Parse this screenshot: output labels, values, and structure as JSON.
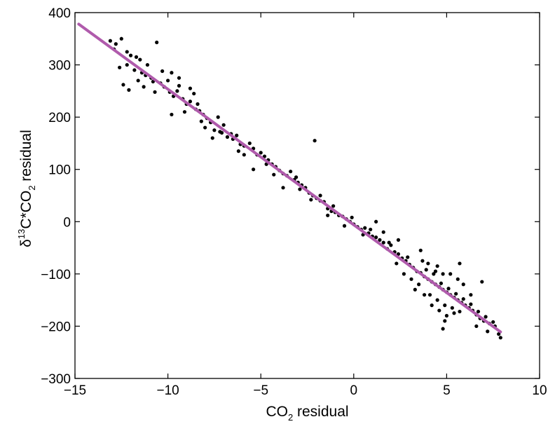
{
  "chart_data": {
    "type": "scatter",
    "title": "",
    "xlabel": {
      "main": "CO",
      "sub": "2",
      "rest": " residual"
    },
    "ylabel": {
      "pre": "δ",
      "sup": "13",
      "mid": "C*CO",
      "sub": "2",
      "rest": " residual"
    },
    "xlim": [
      -15,
      10
    ],
    "ylim": [
      -300,
      400
    ],
    "x_ticks": [
      -15,
      -10,
      -5,
      0,
      5,
      10
    ],
    "y_ticks": [
      -300,
      -200,
      -100,
      0,
      100,
      200,
      300,
      400
    ],
    "x_tick_labels": [
      "−15",
      "−10",
      "−5",
      "0",
      "5",
      "10"
    ],
    "y_tick_labels": [
      "−300",
      "−200",
      "−100",
      "0",
      "100",
      "200",
      "300",
      "400"
    ],
    "grid": false,
    "legend": "none",
    "point_color": "#000000",
    "fit_color": "#b05bac",
    "fit_line": {
      "x": [
        -14.8,
        7.9
      ],
      "y": [
        378,
        -211
      ]
    },
    "series": [
      {
        "points": [
          [
            -13.1,
            346
          ],
          [
            -12.8,
            340
          ],
          [
            -12.5,
            350
          ],
          [
            -12.9,
            330
          ],
          [
            -12.2,
            325
          ],
          [
            -12.6,
            295
          ],
          [
            -12.4,
            262
          ],
          [
            -12.1,
            252
          ],
          [
            -12.0,
            318
          ],
          [
            -11.7,
            315
          ],
          [
            -11.5,
            310
          ],
          [
            -11.8,
            290
          ],
          [
            -11.4,
            285
          ],
          [
            -11.2,
            280
          ],
          [
            -11.1,
            300
          ],
          [
            -10.9,
            275
          ],
          [
            -11.3,
            258
          ],
          [
            -10.6,
            343
          ],
          [
            -10.8,
            268
          ],
          [
            -10.4,
            265
          ],
          [
            -10.2,
            258
          ],
          [
            -10.0,
            270
          ],
          [
            -9.8,
            285
          ],
          [
            -9.7,
            240
          ],
          [
            -9.5,
            250
          ],
          [
            -9.4,
            260
          ],
          [
            -9.2,
            235
          ],
          [
            -9.0,
            225
          ],
          [
            -9.8,
            205
          ],
          [
            -8.8,
            230
          ],
          [
            -8.6,
            245
          ],
          [
            -8.5,
            215
          ],
          [
            -8.3,
            212
          ],
          [
            -8.1,
            205
          ],
          [
            -7.9,
            198
          ],
          [
            -8.0,
            180
          ],
          [
            -7.7,
            190
          ],
          [
            -7.5,
            175
          ],
          [
            -7.2,
            172
          ],
          [
            -7.0,
            185
          ],
          [
            -6.8,
            162
          ],
          [
            -6.5,
            158
          ],
          [
            -6.3,
            165
          ],
          [
            -6.1,
            148
          ],
          [
            -5.9,
            145
          ],
          [
            -5.6,
            150
          ],
          [
            -5.4,
            140
          ],
          [
            -5.2,
            128
          ],
          [
            -5.0,
            132
          ],
          [
            -4.8,
            125
          ],
          [
            -4.6,
            118
          ],
          [
            -4.4,
            110
          ],
          [
            -4.2,
            105
          ],
          [
            -4.0,
            98
          ],
          [
            -3.8,
            92
          ],
          [
            -3.6,
            88
          ],
          [
            -3.4,
            96
          ],
          [
            -3.2,
            80
          ],
          [
            -3.0,
            75
          ],
          [
            -2.8,
            70
          ],
          [
            -2.6,
            65
          ],
          [
            -2.4,
            55
          ],
          [
            -2.2,
            50
          ],
          [
            -2.1,
            155
          ],
          [
            -2.0,
            45
          ],
          [
            -1.8,
            40
          ],
          [
            -1.6,
            38
          ],
          [
            -1.4,
            25
          ],
          [
            -1.2,
            20
          ],
          [
            -1.0,
            18
          ],
          [
            -0.8,
            12
          ],
          [
            -0.6,
            10
          ],
          [
            -0.4,
            5
          ],
          [
            -0.2,
            0
          ],
          [
            0.0,
            -5
          ],
          [
            0.2,
            -10
          ],
          [
            0.4,
            -15
          ],
          [
            0.6,
            -12
          ],
          [
            0.8,
            -22
          ],
          [
            1.0,
            -28
          ],
          [
            1.2,
            -30
          ],
          [
            1.4,
            -35
          ],
          [
            1.6,
            -40
          ],
          [
            1.8,
            -52
          ],
          [
            2.0,
            -45
          ],
          [
            2.2,
            -58
          ],
          [
            2.4,
            -62
          ],
          [
            2.6,
            -70
          ],
          [
            2.8,
            -75
          ],
          [
            3.0,
            -82
          ],
          [
            3.2,
            -88
          ],
          [
            3.4,
            -95
          ],
          [
            3.6,
            -98
          ],
          [
            3.8,
            -105
          ],
          [
            4.0,
            -110
          ],
          [
            4.2,
            -115
          ],
          [
            4.4,
            -120
          ],
          [
            4.6,
            -125
          ],
          [
            4.8,
            -130
          ],
          [
            5.0,
            -135
          ],
          [
            5.2,
            -140
          ],
          [
            5.4,
            -145
          ],
          [
            5.6,
            -150
          ],
          [
            5.8,
            -155
          ],
          [
            6.0,
            -160
          ],
          [
            6.2,
            -165
          ],
          [
            6.4,
            -170
          ],
          [
            6.6,
            -178
          ],
          [
            6.8,
            -185
          ],
          [
            7.0,
            -190
          ],
          [
            7.3,
            -195
          ],
          [
            7.6,
            -200
          ],
          [
            7.8,
            -215
          ],
          [
            7.9,
            -222
          ],
          [
            6.9,
            -115
          ],
          [
            5.7,
            -80
          ],
          [
            3.6,
            -55
          ],
          [
            4.9,
            -190
          ],
          [
            5.4,
            -175
          ],
          [
            3.3,
            -130
          ],
          [
            2.4,
            -35
          ],
          [
            1.6,
            -20
          ],
          [
            1.2,
            0
          ],
          [
            0.5,
            -25
          ],
          [
            -0.5,
            -8
          ],
          [
            -1.4,
            12
          ],
          [
            -1.8,
            50
          ],
          [
            -2.9,
            62
          ],
          [
            -3.8,
            65
          ],
          [
            -4.7,
            110
          ],
          [
            -5.4,
            100
          ],
          [
            -6.2,
            135
          ],
          [
            -6.6,
            168
          ],
          [
            -7.3,
            200
          ],
          [
            -7.6,
            160
          ],
          [
            -8.4,
            225
          ],
          [
            -8.8,
            255
          ],
          [
            -9.4,
            275
          ],
          [
            -9.9,
            248
          ],
          [
            -10.3,
            288
          ],
          [
            -11.6,
            270
          ],
          [
            -12.2,
            300
          ],
          [
            -10.7,
            248
          ],
          [
            -9.1,
            210
          ],
          [
            -8.2,
            192
          ],
          [
            -7.1,
            170
          ],
          [
            -5.9,
            128
          ],
          [
            -4.3,
            90
          ],
          [
            -3.1,
            85
          ],
          [
            -2.3,
            42
          ],
          [
            -1.1,
            30
          ],
          [
            -0.1,
            8
          ],
          [
            0.9,
            -15
          ],
          [
            1.9,
            -40
          ],
          [
            2.9,
            -68
          ],
          [
            3.9,
            -92
          ],
          [
            4.3,
            -100
          ],
          [
            4.7,
            -118
          ],
          [
            5.1,
            -128
          ],
          [
            5.5,
            -138
          ],
          [
            5.9,
            -148
          ],
          [
            6.3,
            -158
          ],
          [
            6.7,
            -172
          ],
          [
            7.1,
            -182
          ],
          [
            7.5,
            -192
          ],
          [
            4.1,
            -140
          ],
          [
            4.5,
            -150
          ],
          [
            4.9,
            -160
          ],
          [
            5.3,
            -165
          ],
          [
            5.7,
            -172
          ],
          [
            3.5,
            -120
          ],
          [
            3.1,
            -110
          ],
          [
            2.7,
            -100
          ],
          [
            2.3,
            -80
          ],
          [
            3.7,
            -75
          ],
          [
            4.5,
            -85
          ],
          [
            5.2,
            -100
          ],
          [
            5.9,
            -120
          ],
          [
            6.3,
            -140
          ],
          [
            6.6,
            -200
          ],
          [
            7.2,
            -210
          ],
          [
            4.8,
            -205
          ],
          [
            5.0,
            -180
          ],
          [
            4.6,
            -170
          ],
          [
            4.2,
            -160
          ],
          [
            3.8,
            -140
          ],
          [
            4.0,
            -80
          ],
          [
            4.4,
            -95
          ],
          [
            4.8,
            -100
          ],
          [
            5.6,
            -110
          ]
        ]
      }
    ]
  }
}
